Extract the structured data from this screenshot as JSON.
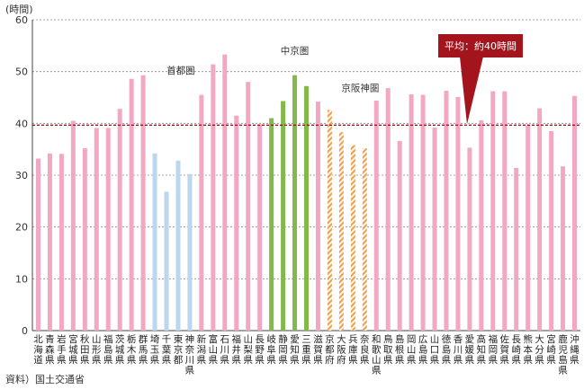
{
  "chart_data": {
    "type": "bar",
    "unit_label": "(時間)",
    "ylim": [
      0,
      60
    ],
    "yticks": [
      0,
      10,
      20,
      30,
      40,
      50,
      60
    ],
    "categories": [
      "北海道",
      "青森県",
      "岩手県",
      "宮城県",
      "秋田県",
      "山形県",
      "福島県",
      "茨城県",
      "栃木県",
      "群馬県",
      "埼玉県",
      "千葉県",
      "東京都",
      "神奈川県",
      "新潟県",
      "富山県",
      "石川県",
      "福井県",
      "山梨県",
      "長野県",
      "岐阜県",
      "静岡県",
      "愛知県",
      "三重県",
      "滋賀県",
      "京都府",
      "大阪府",
      "兵庫県",
      "奈良県",
      "和歌山県",
      "鳥取県",
      "島根県",
      "岡山県",
      "広島県",
      "山口県",
      "徳島県",
      "香川県",
      "愛媛県",
      "高知県",
      "福岡県",
      "佐賀県",
      "長崎県",
      "熊本県",
      "大分県",
      "宮崎県",
      "鹿児島県",
      "沖縄県"
    ],
    "values": [
      33.2,
      34.2,
      34.1,
      40.5,
      35.2,
      39.1,
      39.1,
      42.8,
      48.6,
      49.3,
      34.2,
      26.8,
      32.8,
      30.2,
      45.5,
      51.4,
      53.3,
      41.5,
      48.0,
      39.8,
      41.0,
      44.3,
      49.3,
      47.2,
      44.2,
      42.6,
      38.3,
      35.8,
      35.2,
      44.4,
      46.8,
      36.6,
      45.6,
      45.5,
      39.2,
      46.3,
      45.1,
      35.3,
      40.6,
      46.2,
      46.2,
      31.4,
      39.6,
      42.9,
      38.5,
      31.7,
      45.3
    ],
    "groups": [
      "other",
      "other",
      "other",
      "other",
      "other",
      "other",
      "other",
      "other",
      "other",
      "other",
      "shuto",
      "shuto",
      "shuto",
      "shuto",
      "other",
      "other",
      "other",
      "other",
      "other",
      "other",
      "chukyo",
      "chukyo",
      "chukyo",
      "chukyo",
      "other",
      "keihan",
      "keihan",
      "keihan",
      "keihan",
      "other",
      "other",
      "other",
      "other",
      "other",
      "other",
      "other",
      "other",
      "other",
      "other",
      "other",
      "other",
      "other",
      "other",
      "other",
      "other",
      "other",
      "other"
    ],
    "group_labels": {
      "shuto": "首都圏",
      "chukyo": "中京圏",
      "keihan": "京阪神圏"
    },
    "colors": {
      "other": "#f2a7c3",
      "shuto": "#bcd6ee",
      "chukyo": "#82b94a",
      "keihan": "#f0a050",
      "avg_line": "#a3141c",
      "callout": "#a3141c",
      "grid": "#888888"
    },
    "average": {
      "value": 40,
      "label": "平均：約40時間"
    }
  },
  "source": "資料）国土交通省"
}
